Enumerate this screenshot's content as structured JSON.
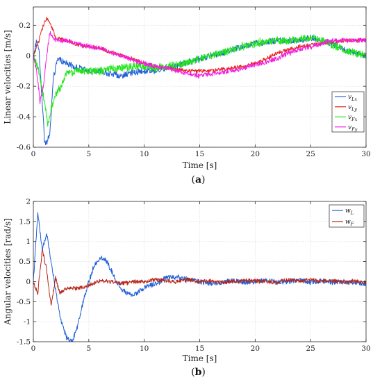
{
  "chart_data": [
    {
      "id": "a",
      "type": "line",
      "caption": "(a)",
      "xlabel": "Time [s]",
      "ylabel": "Linear velocities [m/s]",
      "xlim": [
        0,
        30
      ],
      "ylim": [
        -0.6,
        0.32
      ],
      "xticks": [
        0,
        5,
        10,
        15,
        20,
        25,
        30
      ],
      "yticks": [
        -0.6,
        -0.4,
        -0.2,
        0,
        0.2
      ],
      "grid": true,
      "legend_position": "right",
      "series": [
        {
          "name": "v_Lx",
          "label_main": "v",
          "label_sub": "Lx",
          "color": "#1f5fd6",
          "noise": 0.02,
          "x": [
            0,
            0.3,
            0.5,
            0.8,
            1.0,
            1.2,
            1.5,
            1.8,
            2.2,
            3,
            4,
            5,
            6,
            7,
            8,
            9,
            10,
            11,
            12,
            13,
            14,
            15,
            16,
            17,
            18,
            19,
            20,
            21,
            22,
            23,
            24,
            25,
            26,
            27,
            28,
            29,
            30
          ],
          "y": [
            0,
            0.1,
            0.05,
            -0.3,
            -0.55,
            -0.58,
            -0.5,
            -0.15,
            -0.02,
            -0.05,
            -0.08,
            -0.1,
            -0.1,
            -0.12,
            -0.13,
            -0.11,
            -0.1,
            -0.1,
            -0.08,
            -0.06,
            -0.04,
            -0.02,
            0,
            0.02,
            0.04,
            0.06,
            0.08,
            0.09,
            0.1,
            0.1,
            0.1,
            0.12,
            0.1,
            0.08,
            0.04,
            0.02,
            0
          ]
        },
        {
          "name": "v_Ly",
          "label_main": "v",
          "label_sub": "Ly",
          "color": "#e8201c",
          "noise": 0.012,
          "x": [
            0,
            0.5,
            0.8,
            1.2,
            1.6,
            2,
            3,
            4,
            5,
            6,
            7,
            8,
            9,
            10,
            11,
            12,
            13,
            14,
            15,
            16,
            17,
            18,
            19,
            20,
            21,
            22,
            23,
            24,
            25,
            26,
            27,
            28,
            29,
            30
          ],
          "y": [
            0,
            0.1,
            0.18,
            0.25,
            0.2,
            0.12,
            0.1,
            0.07,
            0.06,
            0.05,
            0.02,
            0,
            -0.02,
            -0.05,
            -0.07,
            -0.08,
            -0.09,
            -0.1,
            -0.1,
            -0.1,
            -0.09,
            -0.08,
            -0.07,
            -0.05,
            -0.02,
            0.02,
            0.04,
            0.06,
            0.07,
            0.08,
            0.09,
            0.1,
            0.1,
            0.1
          ]
        },
        {
          "name": "v_Fx",
          "label_main": "v",
          "label_sub": "Fx",
          "color": "#22e51a",
          "noise": 0.025,
          "x": [
            0,
            0.5,
            1,
            1.3,
            1.6,
            2,
            2.5,
            3,
            4,
            5,
            6,
            7,
            8,
            9,
            10,
            11,
            12,
            13,
            14,
            15,
            16,
            17,
            18,
            19,
            20,
            21,
            22,
            23,
            24,
            25,
            26,
            27,
            28,
            29,
            30
          ],
          "y": [
            0,
            -0.1,
            -0.3,
            -0.45,
            -0.35,
            -0.25,
            -0.2,
            -0.12,
            -0.1,
            -0.1,
            -0.1,
            -0.08,
            -0.08,
            -0.07,
            -0.07,
            -0.08,
            -0.07,
            -0.06,
            -0.04,
            -0.02,
            0,
            0.02,
            0.04,
            0.06,
            0.08,
            0.09,
            0.1,
            0.1,
            0.11,
            0.12,
            0.1,
            0.07,
            0.04,
            0.02,
            0
          ]
        },
        {
          "name": "v_Fy",
          "label_main": "v",
          "label_sub": "Fy",
          "color": "#f21ee2",
          "noise": 0.015,
          "x": [
            0,
            0.3,
            0.6,
            0.9,
            1.2,
            1.5,
            2,
            3,
            4,
            5,
            6,
            7,
            8,
            9,
            10,
            11,
            12,
            13,
            14,
            15,
            16,
            17,
            18,
            19,
            20,
            21,
            22,
            23,
            24,
            25,
            26,
            27,
            28,
            29,
            30
          ],
          "y": [
            0,
            -0.1,
            -0.3,
            -0.2,
            0,
            0.15,
            0.1,
            0.1,
            0.08,
            0.06,
            0.05,
            0.02,
            0,
            -0.03,
            -0.05,
            -0.07,
            -0.08,
            -0.1,
            -0.12,
            -0.13,
            -0.12,
            -0.11,
            -0.1,
            -0.08,
            -0.06,
            -0.04,
            -0.02,
            0.02,
            0.04,
            0.06,
            0.08,
            0.1,
            0.1,
            0.1,
            0.1
          ]
        }
      ]
    },
    {
      "id": "b",
      "type": "line",
      "caption": "(b)",
      "xlabel": "Time [s]",
      "ylabel": "Angular velocities [rad/s]",
      "xlim": [
        0,
        30
      ],
      "ylim": [
        -1.5,
        2
      ],
      "xticks": [
        0,
        5,
        10,
        15,
        20,
        25,
        30
      ],
      "yticks": [
        -1.5,
        -1,
        -0.5,
        0,
        0.5,
        1,
        1.5,
        2
      ],
      "grid": true,
      "legend_position": "top-right",
      "series": [
        {
          "name": "w_L",
          "label_main": "w",
          "label_sub": "L",
          "color": "#1f5fd6",
          "noise": 0.06,
          "x": [
            0,
            0.4,
            0.8,
            1.2,
            1.6,
            2,
            2.5,
            3,
            3.5,
            4,
            4.5,
            5,
            5.5,
            6,
            6.5,
            7,
            7.5,
            8,
            8.5,
            9,
            10,
            11,
            12,
            13,
            14,
            15,
            16,
            17,
            18,
            19,
            20,
            21,
            22,
            23,
            24,
            25,
            26,
            27,
            28,
            29,
            30
          ],
          "y": [
            0,
            1.7,
            0.8,
            1.2,
            0.5,
            -0.2,
            -1.0,
            -1.4,
            -1.5,
            -1.1,
            -0.5,
            0,
            0.4,
            0.6,
            0.55,
            0.3,
            0,
            -0.2,
            -0.3,
            -0.35,
            -0.15,
            -0.05,
            0.1,
            0.1,
            0.05,
            0,
            -0.05,
            -0.02,
            0.03,
            -0.02,
            0,
            0.05,
            -0.02,
            0,
            0.05,
            -0.02,
            0.03,
            -0.02,
            0,
            -0.03,
            -0.05
          ]
        },
        {
          "name": "w_F",
          "label_main": "w",
          "label_sub": "F",
          "color": "#b5271a",
          "noise": 0.05,
          "x": [
            0,
            0.4,
            0.8,
            1.2,
            1.6,
            2,
            2.4,
            2.8,
            3.2,
            4,
            5,
            6,
            7,
            8,
            9,
            10,
            11,
            12,
            13,
            14,
            15,
            16,
            17,
            18,
            19,
            20,
            21,
            22,
            23,
            24,
            25,
            26,
            27,
            28,
            29,
            30
          ],
          "y": [
            0,
            -0.3,
            0.8,
            0.3,
            -0.6,
            0.1,
            -0.3,
            -0.2,
            -0.15,
            -0.18,
            -0.1,
            0.02,
            0,
            -0.05,
            0,
            0,
            0.05,
            0.02,
            0,
            0.05,
            0,
            0.02,
            -0.02,
            0,
            0.03,
            0.02,
            0,
            -0.02,
            0.05,
            0,
            0.05,
            0,
            0.02,
            -0.02,
            0,
            0
          ]
        }
      ]
    }
  ]
}
